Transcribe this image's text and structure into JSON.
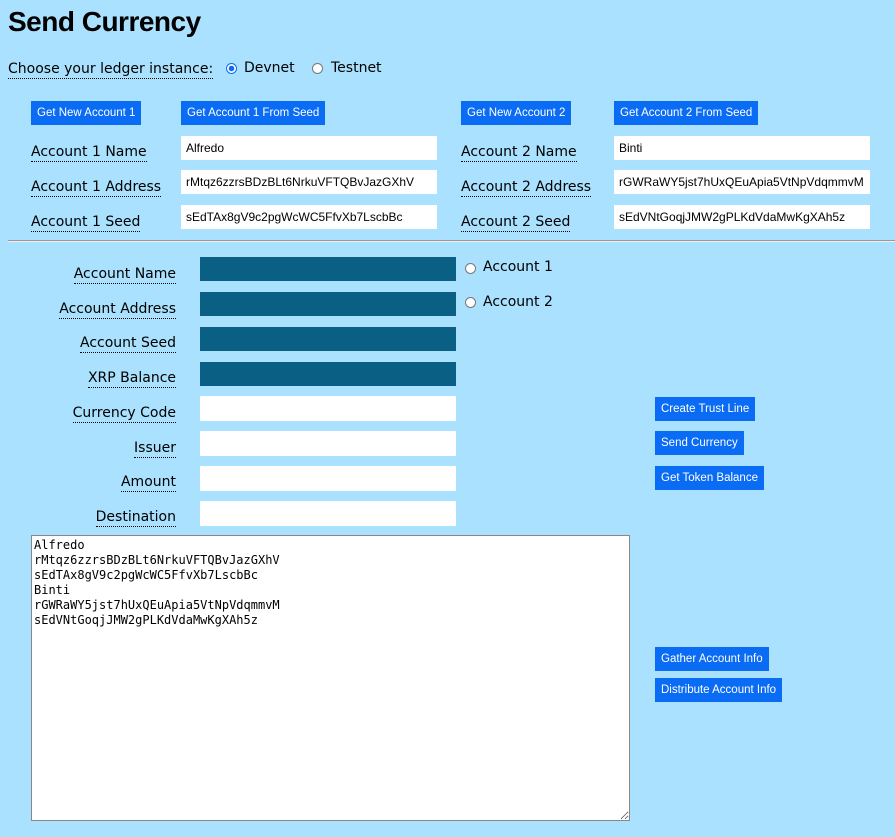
{
  "title": "Send Currency",
  "ledger": {
    "label": "Choose your ledger instance:",
    "options": [
      "Devnet",
      "Testnet"
    ],
    "selected": "Devnet"
  },
  "account1": {
    "new_button": "Get New Account 1",
    "seed_button": "Get Account 1 From Seed",
    "name_label": "Account 1 Name",
    "address_label": "Account 1 Address",
    "seed_label": "Account 1 Seed",
    "name": "Alfredo",
    "address": "rMtqz6zzrsBDzBLt6NrkuVFTQBvJazGXhV",
    "seed": "sEdTAx8gV9c2pgWcWC5FfvXb7LscbBc"
  },
  "account2": {
    "new_button": "Get New Account 2",
    "seed_button": "Get Account 2 From Seed",
    "name_label": "Account 2 Name",
    "address_label": "Account 2 Address",
    "seed_label": "Account 2 Seed",
    "name": "Binti",
    "address": "rGWRaWY5jst7hUxQEuApia5VtNpVdqmmvM",
    "seed": "sEdVNtGoqjJMW2gPLKdVdaMwKgXAh5z"
  },
  "form": {
    "labels": [
      "Account Name",
      "Account Address",
      "Account Seed",
      "XRP Balance",
      "Currency Code",
      "Issuer",
      "Amount",
      "Destination"
    ],
    "values": [
      "",
      "",
      "",
      "",
      "",
      "",
      "",
      ""
    ],
    "account_options": [
      "Account 1",
      "Account 2"
    ]
  },
  "actions": {
    "create_trust_line": "Create Trust Line",
    "send_currency": "Send Currency",
    "get_token_balance": "Get Token Balance",
    "gather": "Gather Account Info",
    "distribute": "Distribute Account Info"
  },
  "results": "Alfredo\nrMtqz6zzrsBDzBLt6NrkuVFTQBvJazGXhV\nsEdTAx8gV9c2pgWcWC5FfvXb7LscbBc\nBinti\nrGWRaWY5jst7hUxQEuApia5VtNpVdqmmvM\nsEdVNtGoqjJMW2gPLKdVdaMwKgXAh5z",
  "colors": {
    "background": "#aae1fe",
    "button": "#0a6cf5",
    "readonly_field": "#0a5f84"
  }
}
